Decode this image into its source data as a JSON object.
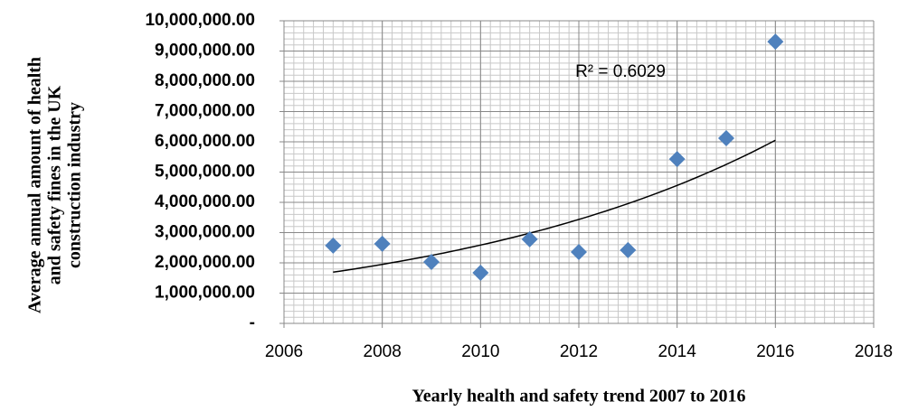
{
  "chart_data": {
    "type": "scatter",
    "ylabel": [
      "Average annual amount of health",
      "and safety fines in the UK",
      "construction industry"
    ],
    "xlabel": "Yearly health and safety trend 2007 to 2016",
    "annotation": "R² = 0.6029",
    "trendline": "exponential",
    "x": [
      2007,
      2008,
      2009,
      2010,
      2011,
      2012,
      2013,
      2014,
      2015,
      2016
    ],
    "series": [
      {
        "color": "#4f81bd",
        "values": [
          2570000,
          2630000,
          2030000,
          1670000,
          2780000,
          2360000,
          2420000,
          5430000,
          6120000,
          9310000
        ]
      }
    ],
    "xlim": [
      2006,
      2018
    ],
    "xticks": [
      2006,
      2008,
      2010,
      2012,
      2014,
      2016,
      2018
    ],
    "ylim": [
      0,
      10000000
    ],
    "yticks": [
      {
        "value": 0,
        "label": "-"
      },
      {
        "value": 1000000,
        "label": "1,000,000.00"
      },
      {
        "value": 2000000,
        "label": "2,000,000.00"
      },
      {
        "value": 3000000,
        "label": "3,000,000.00"
      },
      {
        "value": 4000000,
        "label": "4,000,000.00"
      },
      {
        "value": 5000000,
        "label": "5,000,000.00"
      },
      {
        "value": 6000000,
        "label": "6,000,000.00"
      },
      {
        "value": 7000000,
        "label": "7,000,000.00"
      },
      {
        "value": 8000000,
        "label": "8,000,000.00"
      },
      {
        "value": 9000000,
        "label": "9,000,000.00"
      },
      {
        "value": 10000000,
        "label": "10,000,000.00"
      }
    ],
    "grid": true
  }
}
